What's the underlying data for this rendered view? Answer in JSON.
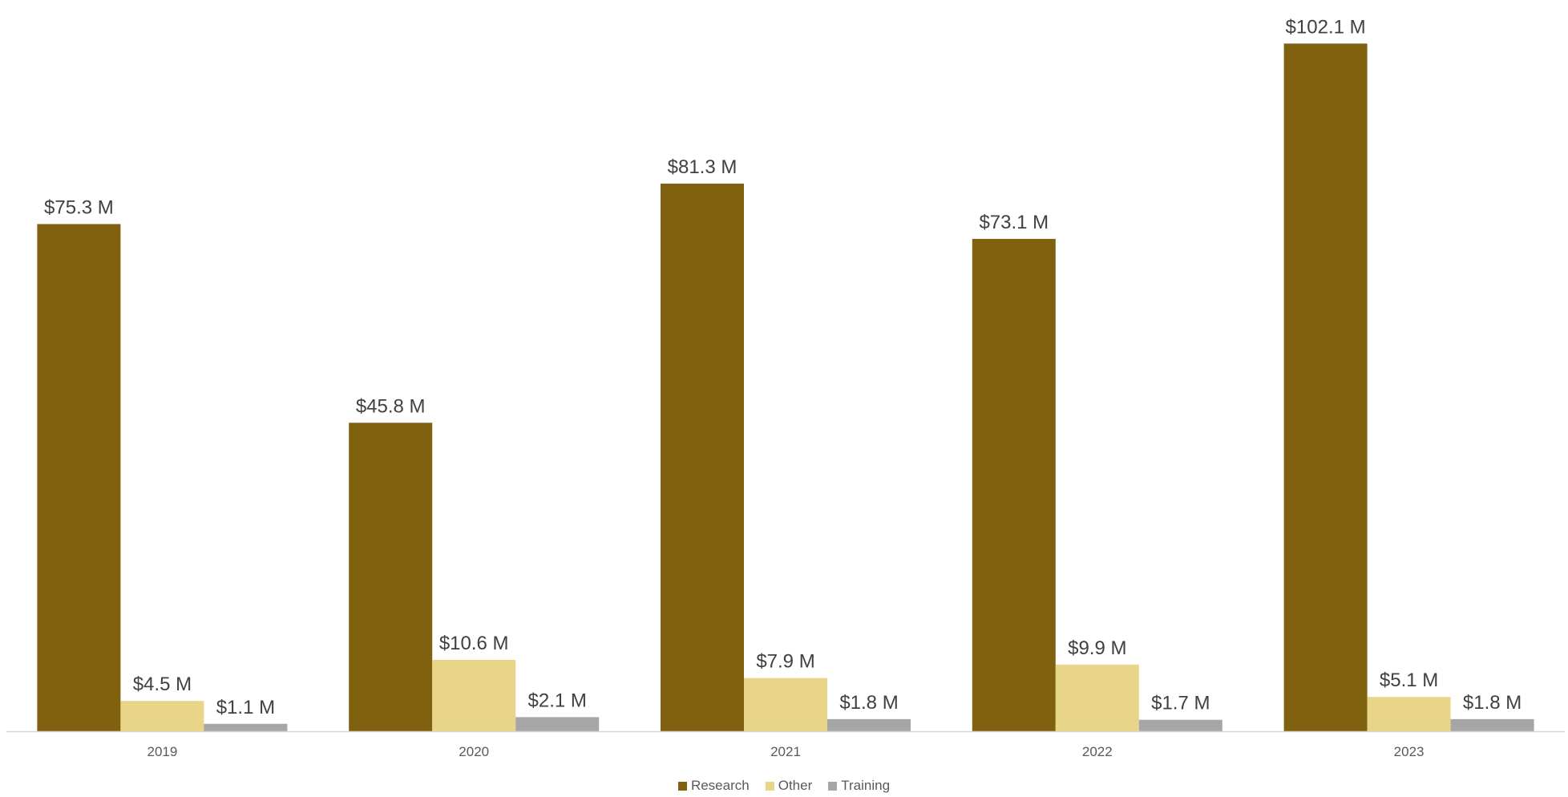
{
  "chart_data": {
    "type": "bar",
    "title": "",
    "xlabel": "",
    "ylabel": "",
    "categories": [
      "2019",
      "2020",
      "2021",
      "2022",
      "2023"
    ],
    "series": [
      {
        "name": "Research",
        "color": "#7f6110",
        "values": [
          75.3,
          45.8,
          81.3,
          73.1,
          102.1
        ],
        "labels": [
          "$75.3 M",
          "$45.8 M",
          "$81.3 M",
          "$73.1 M",
          "$102.1 M"
        ]
      },
      {
        "name": "Other",
        "color": "#e9d588",
        "values": [
          4.5,
          10.6,
          7.9,
          9.9,
          5.1
        ],
        "labels": [
          "$4.5 M",
          "$10.6 M",
          "$7.9 M",
          "$9.9 M",
          "$5.1 M"
        ]
      },
      {
        "name": "Training",
        "color": "#a6a6a6",
        "values": [
          1.1,
          2.1,
          1.8,
          1.7,
          1.8
        ],
        "labels": [
          "$1.1 M",
          "$2.1 M",
          "$1.8 M",
          "$1.7 M",
          "$1.8 M"
        ]
      }
    ],
    "ylim": [
      0,
      104.4
    ],
    "grid": false,
    "legend_position": "bottom"
  }
}
